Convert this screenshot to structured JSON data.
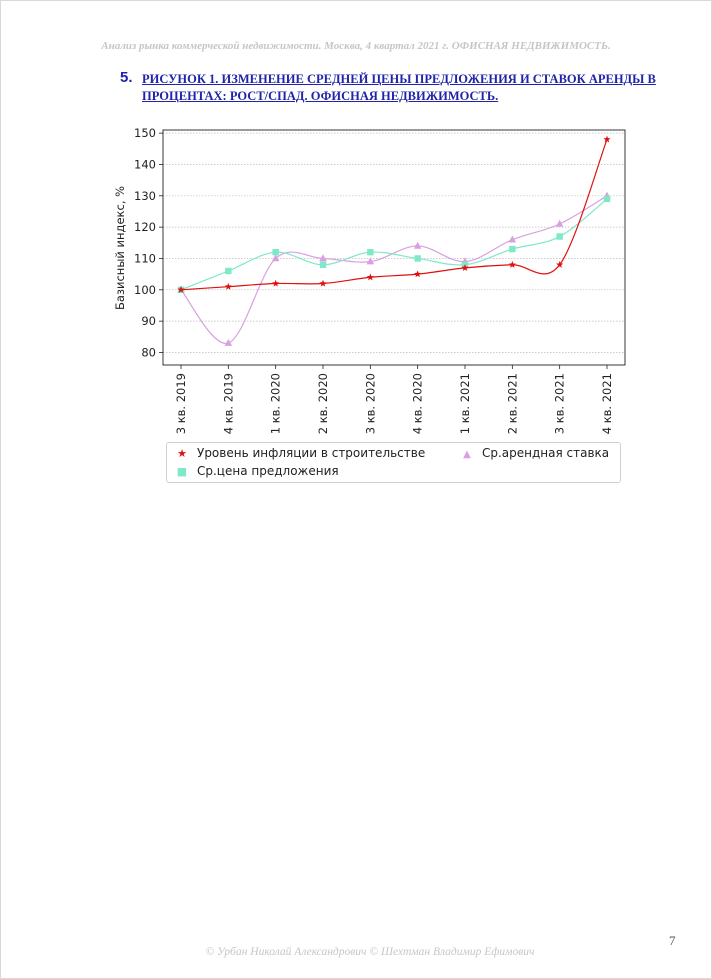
{
  "header": "Анализ рынка коммерческой недвижимости.  Москва,  4 квартал 2021 г.   ОФИСНАЯ НЕДВИЖИМОСТЬ.",
  "heading": {
    "number": "5.",
    "text": "РИСУНОК 1. ИЗМЕНЕНИЕ СРЕДНЕЙ ЦЕНЫ ПРЕДЛОЖЕНИЯ И СТАВОК АРЕНДЫ В ПРОЦЕНТАХ: РОСТ/СПАД. ОФИСНАЯ НЕДВИЖИМОСТЬ."
  },
  "chart_data": {
    "type": "line",
    "ylabel": "Базисный индекс, %",
    "xlabel": "",
    "ylim": [
      76,
      151
    ],
    "yticks": [
      80,
      90,
      100,
      110,
      120,
      130,
      140,
      150
    ],
    "grid": true,
    "legend_position": "bottom",
    "categories": [
      "3 кв. 2019",
      "4 кв. 2019",
      "1 кв. 2020",
      "2 кв. 2020",
      "3 кв. 2020",
      "4 кв. 2020",
      "1 кв. 2021",
      "2 кв. 2021",
      "3 кв. 2021",
      "4 кв. 2021"
    ],
    "series": [
      {
        "name": "Уровень инфляции в строительстве",
        "color": "#e01010",
        "marker": "star",
        "values": [
          100,
          101,
          102,
          102,
          104,
          105,
          107,
          108,
          108,
          148
        ]
      },
      {
        "name": "Ср.арендная ставка",
        "color": "#d8a0e0",
        "marker": "triangle",
        "values": [
          100,
          83,
          110,
          110,
          109,
          114,
          109,
          116,
          121,
          130
        ]
      },
      {
        "name": "Ср.цена предложения",
        "color": "#7fe8c8",
        "marker": "square",
        "values": [
          100,
          106,
          112,
          108,
          112,
          110,
          108,
          113,
          117,
          129
        ]
      }
    ]
  },
  "page_number": "7",
  "footer": "© Урбан Николай Александрович   © Шехтман Владимир Ефимович"
}
